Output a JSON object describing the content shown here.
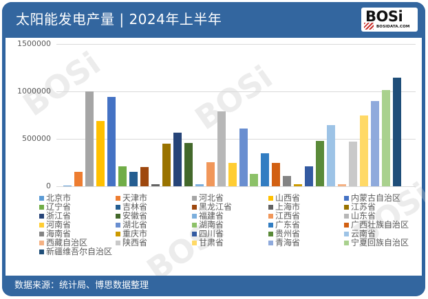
{
  "header": {
    "title": "太阳能发电产量 | 2024年上半年",
    "logo_text": "BOSi",
    "logo_subtext": "BOSIDATA.COM"
  },
  "footer": {
    "source": "数据来源：统计局、博思数据整理"
  },
  "watermark": {
    "text": "BOSi"
  },
  "colors": {
    "header_bg": "#33669f",
    "gridline": "#d9d9d9",
    "tick_text": "#595959"
  },
  "chart_data": {
    "type": "bar",
    "title": "太阳能发电产量 | 2024年上半年",
    "xlabel": "",
    "ylabel": "",
    "ylim": [
      0,
      1500000
    ],
    "yticks": [
      "0",
      "500000",
      "1000000",
      "1500000"
    ],
    "grid": true,
    "legend_position": "bottom",
    "categories": [
      "北京市",
      "天津市",
      "河北省",
      "山西省",
      "内蒙古自治区",
      "辽宁省",
      "吉林省",
      "黑龙江省",
      "上海市",
      "江苏省",
      "浙江省",
      "安徽省",
      "福建省",
      "江西省",
      "山东省",
      "河南省",
      "湖北省",
      "湖南省",
      "广东省",
      "广西壮族自治区",
      "海南省",
      "重庆市",
      "四川省",
      "贵州省",
      "云南省",
      "西藏自治区",
      "陕西省",
      "甘肃省",
      "青海省",
      "宁夏回族自治区",
      "新疆维吾尔自治区"
    ],
    "values": [
      5000,
      155000,
      1000000,
      690000,
      945000,
      208000,
      152000,
      200000,
      20000,
      450000,
      563000,
      456000,
      24000,
      256000,
      790000,
      248000,
      609000,
      133000,
      350000,
      248000,
      109000,
      22000,
      210000,
      478000,
      645000,
      24000,
      474000,
      745000,
      895000,
      1016000,
      1145000
    ],
    "series_colors": [
      "#5b9bd5",
      "#ed7d31",
      "#a5a5a5",
      "#ffc000",
      "#4472c4",
      "#70ad47",
      "#255e91",
      "#9e480e",
      "#636363",
      "#997300",
      "#264478",
      "#43682b",
      "#7cafdd",
      "#f1975a",
      "#b7b7b7",
      "#ffcd33",
      "#698ed0",
      "#8cc168",
      "#327dc2",
      "#d26012",
      "#848484",
      "#cc9a00",
      "#335aa1",
      "#5a8a39",
      "#9dc3e6",
      "#f4b183",
      "#c9c9c9",
      "#ffd966",
      "#8faadc",
      "#a9d18e",
      "#1f4e79"
    ]
  }
}
